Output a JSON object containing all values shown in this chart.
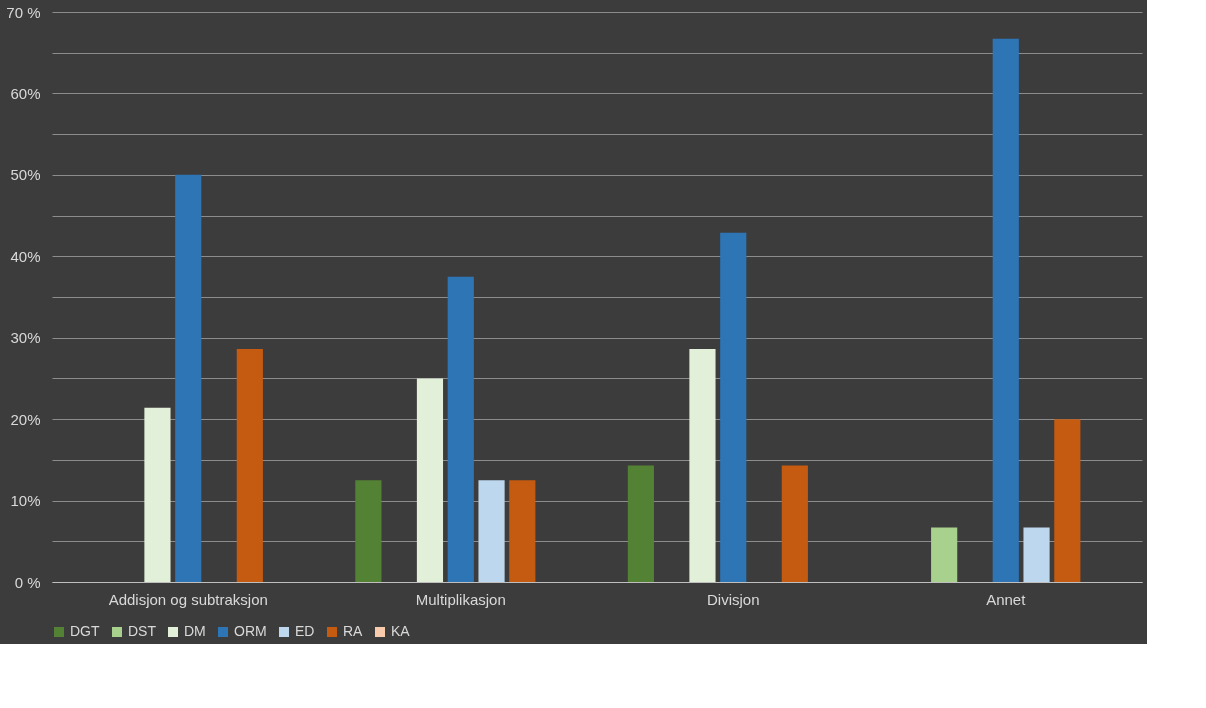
{
  "chart_data": {
    "type": "bar",
    "categories": [
      "Addisjon og subtraksjon",
      "Multiplikasjon",
      "Divisjon",
      "Annet"
    ],
    "series": [
      {
        "name": "DGT",
        "color": "#548235",
        "values": [
          null,
          12.5,
          14.3,
          null
        ]
      },
      {
        "name": "DST",
        "color": "#a9d18e",
        "values": [
          null,
          null,
          null,
          6.7
        ]
      },
      {
        "name": "DM",
        "color": "#e2f0d9",
        "values": [
          21.4,
          25,
          28.6,
          null
        ]
      },
      {
        "name": "ORM",
        "color": "#2e75b6",
        "values": [
          50,
          37.5,
          42.9,
          66.7
        ]
      },
      {
        "name": "ED",
        "color": "#bdd7ee",
        "values": [
          null,
          12.5,
          null,
          6.7
        ]
      },
      {
        "name": "RA",
        "color": "#c55a11",
        "values": [
          28.6,
          12.5,
          14.3,
          20
        ]
      },
      {
        "name": "KA",
        "color": "#f8cbad",
        "values": [
          null,
          null,
          null,
          null
        ]
      }
    ],
    "ylim": [
      0,
      70
    ],
    "yticks": [
      {
        "value": 0,
        "label": "0 %"
      },
      {
        "value": 5,
        "label": null
      },
      {
        "value": 10,
        "label": "10%"
      },
      {
        "value": 15,
        "label": null
      },
      {
        "value": 20,
        "label": "20%"
      },
      {
        "value": 25,
        "label": null
      },
      {
        "value": 30,
        "label": "30%"
      },
      {
        "value": 35,
        "label": null
      },
      {
        "value": 40,
        "label": "40%"
      },
      {
        "value": 45,
        "label": null
      },
      {
        "value": 50,
        "label": "50%"
      },
      {
        "value": 55,
        "label": null
      },
      {
        "value": 60,
        "label": "60%"
      },
      {
        "value": 65,
        "label": null
      },
      {
        "value": 70,
        "label": "70 %"
      }
    ],
    "grid": "y",
    "legend": "bottom"
  }
}
